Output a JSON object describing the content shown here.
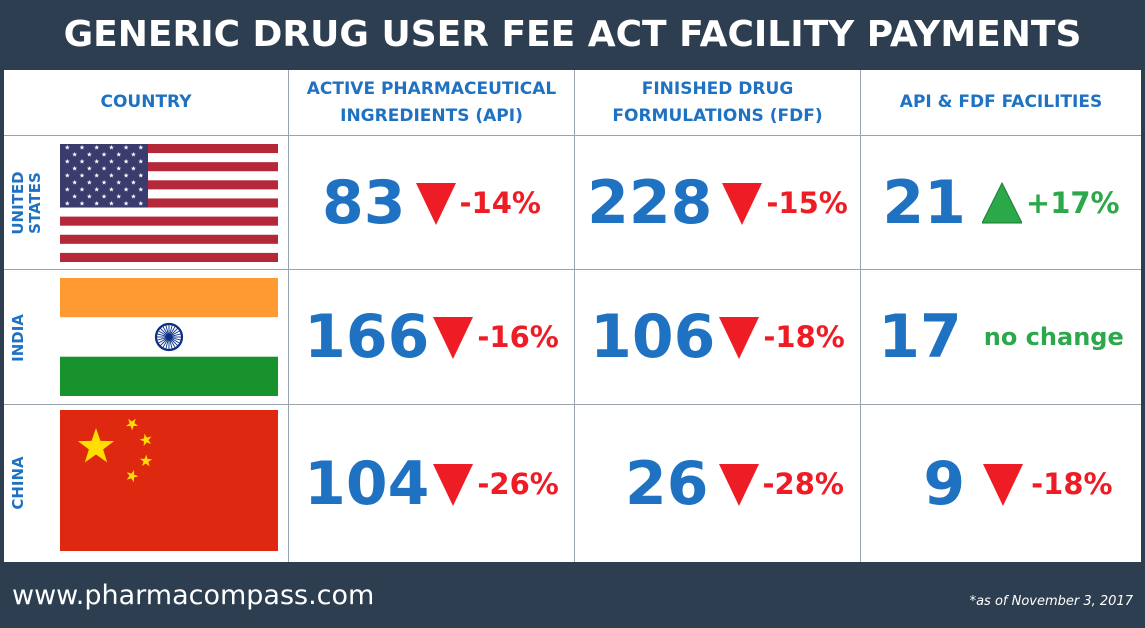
{
  "title": "GENERIC DRUG USER FEE ACT FACILITY PAYMENTS",
  "colors": {
    "background": "#2d3e50",
    "number": "#1f72c2",
    "header": "#1f72c2",
    "decrease": "#ee1c25",
    "increase": "#2aa84a"
  },
  "headers": {
    "country": "COUNTRY",
    "api": "ACTIVE PHARMACEUTICAL\nINGREDIENTS (API)",
    "fdf": "FINISHED DRUG\nFORMULATIONS (FDF)",
    "both": "API & FDF FACILITIES"
  },
  "footer": {
    "url": "www.pharmacompass.com",
    "date_note": "*as of November 3, 2017"
  },
  "chart_data": {
    "type": "table",
    "title": "GENERIC DRUG USER FEE ACT FACILITY PAYMENTS",
    "columns": [
      "COUNTRY",
      "ACTIVE PHARMACEUTICAL INGREDIENTS (API)",
      "FINISHED DRUG FORMULATIONS (FDF)",
      "API & FDF FACILITIES"
    ],
    "rows": [
      {
        "country": "UNITED\nSTATES",
        "flag": "usa-flag",
        "api": {
          "value": "83",
          "direction": "down",
          "change": "-14%"
        },
        "fdf": {
          "value": "228",
          "direction": "down",
          "change": "-15%"
        },
        "both": {
          "value": "21",
          "direction": "up",
          "change": "+17%"
        }
      },
      {
        "country": "INDIA",
        "flag": "india-flag",
        "api": {
          "value": "166",
          "direction": "down",
          "change": "-16%"
        },
        "fdf": {
          "value": "106",
          "direction": "down",
          "change": "-18%"
        },
        "both": {
          "value": "17",
          "direction": "none",
          "change": "no change"
        }
      },
      {
        "country": "CHINA",
        "flag": "china-flag",
        "api": {
          "value": "104",
          "direction": "down",
          "change": "-26%"
        },
        "fdf": {
          "value": "26",
          "direction": "down",
          "change": "-28%"
        },
        "both": {
          "value": "9",
          "direction": "down",
          "change": "-18%"
        }
      }
    ]
  }
}
